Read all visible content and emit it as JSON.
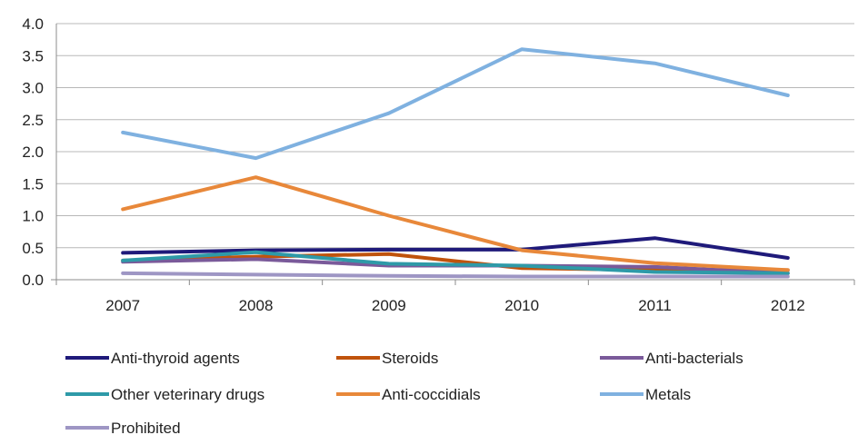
{
  "chart_data": {
    "type": "line",
    "title": "",
    "xlabel": "",
    "ylabel": "",
    "x": [
      "2007",
      "2008",
      "2009",
      "2010",
      "2011",
      "2012"
    ],
    "ylim": [
      0,
      4.0
    ],
    "yticks": [
      "0.0",
      "0.5",
      "1.0",
      "1.5",
      "2.0",
      "2.5",
      "3.0",
      "3.5",
      "4.0"
    ],
    "grid": true,
    "legend_position": "bottom",
    "series": [
      {
        "name": "Anti-thyroid agents",
        "color": "#1f1a7a",
        "values": [
          0.42,
          0.46,
          0.47,
          0.47,
          0.65,
          0.34
        ]
      },
      {
        "name": "Steroids",
        "color": "#c0530c",
        "values": [
          0.3,
          0.36,
          0.4,
          0.18,
          0.15,
          0.15
        ]
      },
      {
        "name": "Anti-bacterials",
        "color": "#7a5a9a",
        "values": [
          0.28,
          0.32,
          0.22,
          0.22,
          0.2,
          0.1
        ]
      },
      {
        "name": "Other veterinary drugs",
        "color": "#2e9aa8",
        "values": [
          0.3,
          0.43,
          0.25,
          0.22,
          0.12,
          0.1
        ]
      },
      {
        "name": "Anti-coccidials",
        "color": "#e8883a",
        "values": [
          1.1,
          1.6,
          1.0,
          0.46,
          0.26,
          0.15
        ]
      },
      {
        "name": "Metals",
        "color": "#7fb1e0",
        "values": [
          2.3,
          1.9,
          2.6,
          3.6,
          3.38,
          2.88
        ]
      },
      {
        "name": "Prohibited",
        "color": "#9e96c4",
        "values": [
          0.1,
          0.08,
          0.06,
          0.05,
          0.05,
          0.05
        ]
      }
    ]
  }
}
